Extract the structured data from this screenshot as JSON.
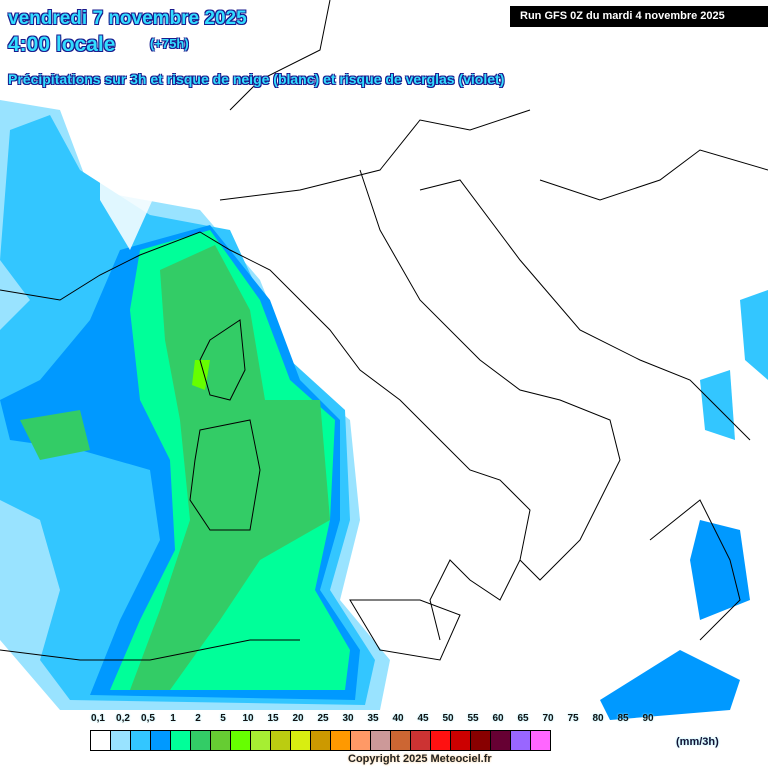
{
  "header": {
    "title": "vendredi 7 novembre 2025",
    "time": "4:00 locale",
    "lead": "(+75h)",
    "subtitle": "Précipitations sur 3h et risque de neige (blanc) et risque de verglas (violet)",
    "run": "Run GFS 0Z du mardi 4 novembre 2025"
  },
  "legend": {
    "labels": [
      "0,1",
      "0,2",
      "0,5",
      "1",
      "2",
      "5",
      "10",
      "15",
      "20",
      "25",
      "30",
      "35",
      "40",
      "45",
      "50",
      "55",
      "60",
      "65",
      "70",
      "75",
      "80",
      "85",
      "90"
    ],
    "colors": [
      "#ffffff",
      "#99e3ff",
      "#33c6ff",
      "#0099ff",
      "#00ff99",
      "#33cc66",
      "#66cc33",
      "#66ff00",
      "#a6ee33",
      "#bbcc11",
      "#d8ee11",
      "#cc9900",
      "#ff9900",
      "#ff9966",
      "#cc9999",
      "#cc6633",
      "#cc3333",
      "#ff1111",
      "#cc0000",
      "#880000",
      "#660033",
      "#9966ff",
      "#ff66ff"
    ],
    "unit": "(mm/3h)"
  },
  "copyright": "Copyright 2025 Meteociel.fr"
}
